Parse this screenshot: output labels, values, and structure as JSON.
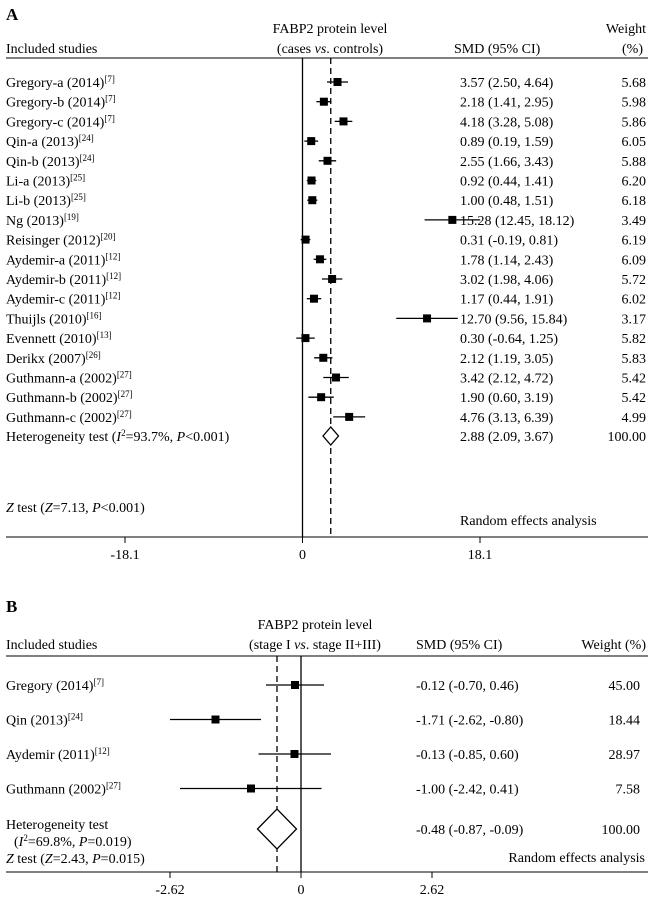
{
  "chart_data": [
    {
      "type": "forest",
      "panel": "A",
      "header": {
        "studies": "Included studies",
        "measure_line1": "FABP2 protein level",
        "measure_line2": [
          "(cases ",
          "vs",
          ". controls)"
        ],
        "smd": "SMD (95% CI)",
        "weight_line1": "Weight",
        "weight_line2": "(%)"
      },
      "axis": {
        "min": -18.1,
        "max": 18.1,
        "ticks": [
          "-18.1",
          "0",
          "18.1"
        ]
      },
      "rows": [
        {
          "name": "Gregory-a (2014)",
          "ref": "[7]",
          "smd": 3.57,
          "lo": 2.5,
          "hi": 4.64,
          "ci_text": "3.57 (2.50, 4.64)",
          "weight": "5.68"
        },
        {
          "name": "Gregory-b (2014)",
          "ref": "[7]",
          "smd": 2.18,
          "lo": 1.41,
          "hi": 2.95,
          "ci_text": "2.18 (1.41, 2.95)",
          "weight": "5.98"
        },
        {
          "name": "Gregory-c (2014)",
          "ref": "[7]",
          "smd": 4.18,
          "lo": 3.28,
          "hi": 5.08,
          "ci_text": "4.18 (3.28, 5.08)",
          "weight": "5.86"
        },
        {
          "name": "Qin-a (2013)",
          "ref": "[24]",
          "smd": 0.89,
          "lo": 0.19,
          "hi": 1.59,
          "ci_text": "0.89 (0.19, 1.59)",
          "weight": "6.05"
        },
        {
          "name": "Qin-b (2013)",
          "ref": "[24]",
          "smd": 2.55,
          "lo": 1.66,
          "hi": 3.43,
          "ci_text": "2.55 (1.66, 3.43)",
          "weight": "5.88"
        },
        {
          "name": "Li-a (2013)",
          "ref": "[25]",
          "smd": 0.92,
          "lo": 0.44,
          "hi": 1.41,
          "ci_text": "0.92 (0.44, 1.41)",
          "weight": "6.20"
        },
        {
          "name": "Li-b (2013)",
          "ref": "[25]",
          "smd": 1.0,
          "lo": 0.48,
          "hi": 1.51,
          "ci_text": "1.00 (0.48, 1.51)",
          "weight": "6.18"
        },
        {
          "name": "Ng (2013)",
          "ref": "[19]",
          "smd": 15.28,
          "lo": 12.45,
          "hi": 18.12,
          "ci_text": "15.28 (12.45, 18.12)",
          "weight": "3.49"
        },
        {
          "name": "Reisinger (2012)",
          "ref": "[20]",
          "smd": 0.31,
          "lo": -0.19,
          "hi": 0.81,
          "ci_text": "0.31 (-0.19, 0.81)",
          "weight": "6.19"
        },
        {
          "name": "Aydemir-a (2011)",
          "ref": "[12]",
          "smd": 1.78,
          "lo": 1.14,
          "hi": 2.43,
          "ci_text": "1.78 (1.14, 2.43)",
          "weight": "6.09"
        },
        {
          "name": "Aydemir-b (2011)",
          "ref": "[12]",
          "smd": 3.02,
          "lo": 1.98,
          "hi": 4.06,
          "ci_text": "3.02 (1.98, 4.06)",
          "weight": "5.72"
        },
        {
          "name": "Aydemir-c (2011)",
          "ref": "[12]",
          "smd": 1.17,
          "lo": 0.44,
          "hi": 1.91,
          "ci_text": "1.17 (0.44, 1.91)",
          "weight": "6.02"
        },
        {
          "name": "Thuijls (2010)",
          "ref": "[16]",
          "smd": 12.7,
          "lo": 9.56,
          "hi": 15.84,
          "ci_text": "12.70 (9.56, 15.84)",
          "weight": "3.17"
        },
        {
          "name": "Evennett (2010)",
          "ref": "[13]",
          "smd": 0.3,
          "lo": -0.64,
          "hi": 1.25,
          "ci_text": "0.30 (-0.64, 1.25)",
          "weight": "5.82"
        },
        {
          "name": "Derikx (2007)",
          "ref": "[26]",
          "smd": 2.12,
          "lo": 1.19,
          "hi": 3.05,
          "ci_text": "2.12 (1.19, 3.05)",
          "weight": "5.83"
        },
        {
          "name": "Guthmann-a (2002)",
          "ref": "[27]",
          "smd": 3.42,
          "lo": 2.12,
          "hi": 4.72,
          "ci_text": "3.42 (2.12, 4.72)",
          "weight": "5.42"
        },
        {
          "name": "Guthmann-b (2002)",
          "ref": "[27]",
          "smd": 1.9,
          "lo": 0.6,
          "hi": 3.19,
          "ci_text": "1.90 (0.60, 3.19)",
          "weight": "5.42"
        },
        {
          "name": "Guthmann-c (2002)",
          "ref": "[27]",
          "smd": 4.76,
          "lo": 3.13,
          "hi": 6.39,
          "ci_text": "4.76 (3.13, 6.39)",
          "weight": "4.99"
        }
      ],
      "summary": {
        "label_parts": [
          "Heterogeneity test (",
          "I",
          "2",
          "=93.7%, ",
          "P",
          "<0.001)"
        ],
        "smd": 2.88,
        "lo": 2.09,
        "hi": 3.67,
        "ci_text": "2.88 (2.09, 3.67)",
        "weight": "100.00"
      },
      "ztest_parts": [
        "Z",
        " test (",
        "Z",
        "=7.13, ",
        "P",
        "<0.001)"
      ],
      "analysis": "Random effects analysis"
    },
    {
      "type": "forest",
      "panel": "B",
      "header": {
        "studies": "Included studies",
        "measure_line1": "FABP2 protein level",
        "measure_line2": [
          "(stage I ",
          "vs",
          ". stage II+III)"
        ],
        "smd": "SMD (95% CI)",
        "weight_line1": "Weight (%)"
      },
      "axis": {
        "min": -2.62,
        "max": 2.62,
        "ticks": [
          "-2.62",
          "0",
          "2.62"
        ]
      },
      "rows": [
        {
          "name": "Gregory (2014)",
          "ref": "[7]",
          "smd": -0.12,
          "lo": -0.7,
          "hi": 0.46,
          "ci_text": "-0.12 (-0.70, 0.46)",
          "weight": "45.00"
        },
        {
          "name": "Qin (2013)",
          "ref": "[24]",
          "smd": -1.71,
          "lo": -2.62,
          "hi": -0.8,
          "ci_text": "-1.71 (-2.62, -0.80)",
          "weight": "18.44"
        },
        {
          "name": "Aydemir (2011)",
          "ref": "[12]",
          "smd": -0.13,
          "lo": -0.85,
          "hi": 0.6,
          "ci_text": "-0.13 (-0.85, 0.60)",
          "weight": "28.97"
        },
        {
          "name": "Guthmann (2002)",
          "ref": "[27]",
          "smd": -1.0,
          "lo": -2.42,
          "hi": 0.41,
          "ci_text": "-1.00 (-2.42, 0.41)",
          "weight": "7.58"
        }
      ],
      "summary": {
        "label_line1": "Heterogeneity test",
        "label_parts": [
          "(",
          "I",
          "2",
          "=69.8%, ",
          "P",
          "=0.019)"
        ],
        "smd": -0.48,
        "lo": -0.87,
        "hi": -0.09,
        "ci_text": "-0.48 (-0.87, -0.09)",
        "weight": "100.00"
      },
      "ztest_parts": [
        "Z",
        " test (",
        "Z",
        "=2.43, ",
        "P",
        "=0.015)"
      ],
      "analysis": "Random effects analysis"
    }
  ]
}
